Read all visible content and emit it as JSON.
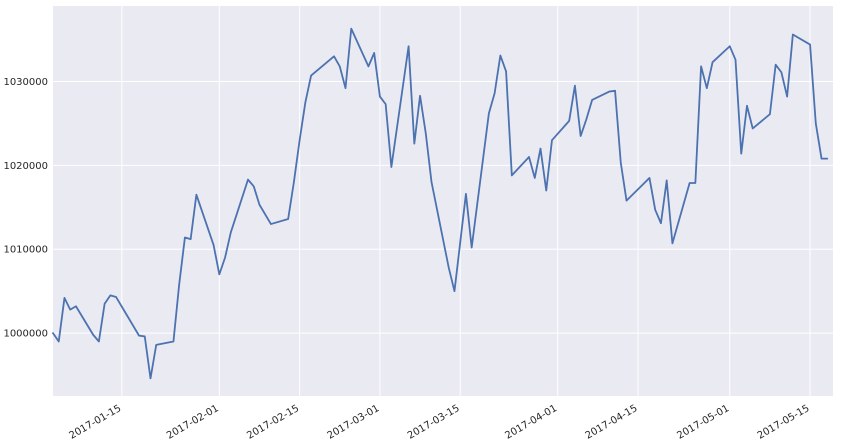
{
  "chart_data": {
    "type": "line",
    "title": "",
    "xlabel": "",
    "ylabel": "",
    "grid": true,
    "colors": {
      "background": "#eaeaf2",
      "grid": "#ffffff",
      "line": "#4c72b0",
      "text": "#262626"
    },
    "xlim": [
      "2017-01-03",
      "2017-05-19"
    ],
    "ylim": [
      992500,
      1039000
    ],
    "x_ticks": [
      {
        "date": "2017-01-15",
        "label": "2017-01-15"
      },
      {
        "date": "2017-02-01",
        "label": "2017-02-01"
      },
      {
        "date": "2017-02-15",
        "label": "2017-02-15"
      },
      {
        "date": "2017-03-01",
        "label": "2017-03-01"
      },
      {
        "date": "2017-03-15",
        "label": "2017-03-15"
      },
      {
        "date": "2017-04-01",
        "label": "2017-04-01"
      },
      {
        "date": "2017-04-15",
        "label": "2017-04-15"
      },
      {
        "date": "2017-05-01",
        "label": "2017-05-01"
      },
      {
        "date": "2017-05-15",
        "label": "2017-05-15"
      }
    ],
    "y_ticks": [
      {
        "value": 1000000,
        "label": "1000000"
      },
      {
        "value": 1010000,
        "label": "1010000"
      },
      {
        "value": 1020000,
        "label": "1020000"
      },
      {
        "value": 1030000,
        "label": "1030000"
      }
    ],
    "series": [
      {
        "x": [
          "2017-01-03",
          "2017-01-04",
          "2017-01-05",
          "2017-01-06",
          "2017-01-07",
          "2017-01-10",
          "2017-01-11",
          "2017-01-12",
          "2017-01-13",
          "2017-01-14",
          "2017-01-18",
          "2017-01-19",
          "2017-01-20",
          "2017-01-21",
          "2017-01-24",
          "2017-01-25",
          "2017-01-26",
          "2017-01-27",
          "2017-01-28",
          "2017-01-31",
          "2017-02-01",
          "2017-02-02",
          "2017-02-03",
          "2017-02-06",
          "2017-02-07",
          "2017-02-08",
          "2017-02-10",
          "2017-02-13",
          "2017-02-14",
          "2017-02-15",
          "2017-02-16",
          "2017-02-17",
          "2017-02-21",
          "2017-02-22",
          "2017-02-23",
          "2017-02-24",
          "2017-02-27",
          "2017-02-28",
          "2017-03-01",
          "2017-03-02",
          "2017-03-03",
          "2017-03-06",
          "2017-03-07",
          "2017-03-08",
          "2017-03-09",
          "2017-03-10",
          "2017-03-13",
          "2017-03-14",
          "2017-03-15",
          "2017-03-16",
          "2017-03-17",
          "2017-03-20",
          "2017-03-21",
          "2017-03-22",
          "2017-03-23",
          "2017-03-24",
          "2017-03-27",
          "2017-03-28",
          "2017-03-29",
          "2017-03-30",
          "2017-03-31",
          "2017-04-03",
          "2017-04-04",
          "2017-04-05",
          "2017-04-06",
          "2017-04-07",
          "2017-04-10",
          "2017-04-11",
          "2017-04-12",
          "2017-04-13",
          "2017-04-17",
          "2017-04-18",
          "2017-04-19",
          "2017-04-20",
          "2017-04-21",
          "2017-04-24",
          "2017-04-25",
          "2017-04-26",
          "2017-04-27",
          "2017-04-28",
          "2017-05-01",
          "2017-05-02",
          "2017-05-03",
          "2017-05-04",
          "2017-05-05",
          "2017-05-08",
          "2017-05-09",
          "2017-05-10",
          "2017-05-11",
          "2017-05-12",
          "2017-05-15",
          "2017-05-16",
          "2017-05-17",
          "2017-05-18"
        ],
        "values": [
          1000000,
          999000,
          1004200,
          1002800,
          1003200,
          999800,
          999000,
          1003500,
          1004500,
          1004300,
          999700,
          999600,
          994600,
          998600,
          999000,
          1005800,
          1011400,
          1011200,
          1016500,
          1010500,
          1007000,
          1009000,
          1012000,
          1018300,
          1017500,
          1015300,
          1013000,
          1013600,
          1018000,
          1023000,
          1027500,
          1030700,
          1033000,
          1031800,
          1029200,
          1036300,
          1031800,
          1033400,
          1028200,
          1027300,
          1019800,
          1034200,
          1022600,
          1028300,
          1023800,
          1018000,
          1007800,
          1005000,
          1010800,
          1016600,
          1010200,
          1026200,
          1028600,
          1033100,
          1031200,
          1018800,
          1021000,
          1018500,
          1022000,
          1017000,
          1023000,
          1025300,
          1029500,
          1023500,
          1025500,
          1027800,
          1028800,
          1028900,
          1020300,
          1015800,
          1018500,
          1014700,
          1013100,
          1018200,
          1010700,
          1017900,
          1017900,
          1031800,
          1029200,
          1032300,
          1034200,
          1032600,
          1021400,
          1027100,
          1024400,
          1026100,
          1032000,
          1031100,
          1028200,
          1035600,
          1034400,
          1025000,
          1020800,
          1020800
        ]
      }
    ]
  }
}
